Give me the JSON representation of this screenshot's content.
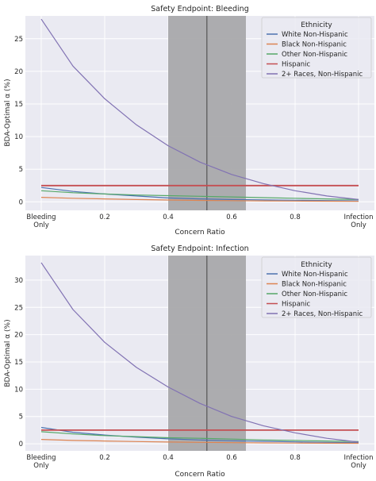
{
  "chart_data": [
    {
      "type": "line",
      "title": "Safety Endpoint: Bleeding",
      "xlabel": "Concern Ratio",
      "ylabel": "BDA-Optimal α (%)",
      "xlim": [
        -0.05,
        1.05
      ],
      "ylim": [
        -1.3,
        28.5
      ],
      "yticks": [
        0,
        5,
        10,
        15,
        20,
        25
      ],
      "xticks": [
        {
          "value": 0.0,
          "label": "Bleeding\nOnly"
        },
        {
          "value": 0.2,
          "label": "0.2"
        },
        {
          "value": 0.4,
          "label": "0.4"
        },
        {
          "value": 0.6,
          "label": "0.6"
        },
        {
          "value": 0.8,
          "label": "0.8"
        },
        {
          "value": 1.0,
          "label": "Infection\nOnly"
        }
      ],
      "grid": true,
      "legend_title": "Ethnicity",
      "legend_position": "top-right",
      "shaded_region": {
        "x_from": 0.4,
        "x_to": 0.645,
        "color": "#a9a9ab"
      },
      "vline": {
        "x": 0.522,
        "color": "#555555"
      },
      "x": [
        0,
        0.1,
        0.2,
        0.3,
        0.4,
        0.5,
        0.6,
        0.7,
        0.8,
        0.9,
        1.0
      ],
      "series": [
        {
          "name": "White Non-Hispanic",
          "color": "#4c72b0",
          "values": [
            2.2,
            1.6,
            1.2,
            0.9,
            0.6,
            0.45,
            0.35,
            0.3,
            0.25,
            0.2,
            0.15
          ]
        },
        {
          "name": "Black Non-Hispanic",
          "color": "#dd8452",
          "values": [
            0.7,
            0.55,
            0.45,
            0.35,
            0.28,
            0.22,
            0.18,
            0.15,
            0.12,
            0.1,
            0.08
          ]
        },
        {
          "name": "Other Non-Hispanic",
          "color": "#55a868",
          "values": [
            1.7,
            1.4,
            1.2,
            1.05,
            0.95,
            0.85,
            0.75,
            0.65,
            0.55,
            0.45,
            0.35
          ]
        },
        {
          "name": "Hispanic",
          "color": "#c44e52",
          "values": [
            2.5,
            2.5,
            2.5,
            2.5,
            2.5,
            2.5,
            2.5,
            2.5,
            2.5,
            2.5,
            2.5
          ]
        },
        {
          "name": "2+ Races, Non-Hispanic",
          "color": "#8172b3",
          "values": [
            28.0,
            20.8,
            15.8,
            11.8,
            8.6,
            6.1,
            4.2,
            2.8,
            1.7,
            0.9,
            0.35
          ]
        }
      ]
    },
    {
      "type": "line",
      "title": "Safety Endpoint: Infection",
      "xlabel": "Concern Ratio",
      "ylabel": "BDA-Optimal α (%)",
      "xlim": [
        -0.05,
        1.05
      ],
      "ylim": [
        -1.3,
        34.5
      ],
      "yticks": [
        0,
        5,
        10,
        15,
        20,
        25,
        30
      ],
      "xticks": [
        {
          "value": 0.0,
          "label": "Bleeding\nOnly"
        },
        {
          "value": 0.2,
          "label": "0.2"
        },
        {
          "value": 0.4,
          "label": "0.4"
        },
        {
          "value": 0.6,
          "label": "0.6"
        },
        {
          "value": 0.8,
          "label": "0.8"
        },
        {
          "value": 1.0,
          "label": "Infection\nOnly"
        }
      ],
      "grid": true,
      "legend_title": "Ethnicity",
      "legend_position": "top-right",
      "shaded_region": {
        "x_from": 0.4,
        "x_to": 0.645,
        "color": "#a9a9ab"
      },
      "vline": {
        "x": 0.522,
        "color": "#555555"
      },
      "x": [
        0,
        0.1,
        0.2,
        0.3,
        0.4,
        0.5,
        0.6,
        0.7,
        0.8,
        0.9,
        1.0
      ],
      "series": [
        {
          "name": "White Non-Hispanic",
          "color": "#4c72b0",
          "values": [
            3.0,
            2.1,
            1.6,
            1.2,
            0.9,
            0.7,
            0.55,
            0.45,
            0.35,
            0.25,
            0.2
          ]
        },
        {
          "name": "Black Non-Hispanic",
          "color": "#dd8452",
          "values": [
            0.8,
            0.6,
            0.5,
            0.4,
            0.32,
            0.26,
            0.2,
            0.16,
            0.13,
            0.1,
            0.08
          ]
        },
        {
          "name": "Other Non-Hispanic",
          "color": "#55a868",
          "values": [
            2.2,
            1.8,
            1.5,
            1.3,
            1.1,
            1.0,
            0.85,
            0.7,
            0.6,
            0.5,
            0.4
          ]
        },
        {
          "name": "Hispanic",
          "color": "#c44e52",
          "values": [
            2.5,
            2.5,
            2.5,
            2.5,
            2.5,
            2.5,
            2.5,
            2.5,
            2.5,
            2.5,
            2.5
          ]
        },
        {
          "name": "2+ Races, Non-Hispanic",
          "color": "#8172b3",
          "values": [
            33.2,
            24.6,
            18.6,
            14.0,
            10.4,
            7.4,
            5.0,
            3.3,
            2.0,
            1.0,
            0.3
          ]
        }
      ]
    }
  ]
}
